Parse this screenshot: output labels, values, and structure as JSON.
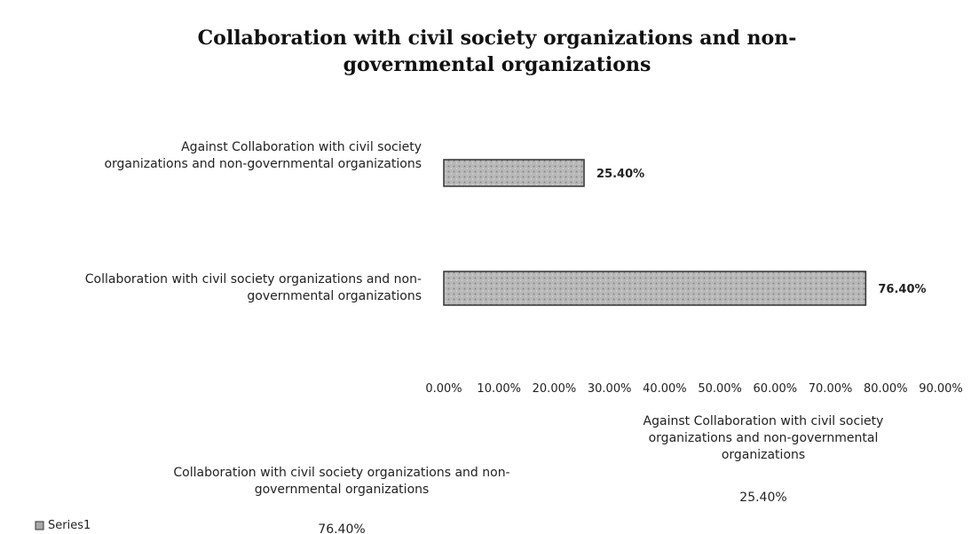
{
  "chart_data": {
    "type": "bar",
    "orientation": "horizontal",
    "title": "Collaboration with civil society organizations and non-governmental organizations",
    "categories": [
      "Against Collaboration with civil society organizations and non-governmental organizations",
      "Collaboration with civil society organizations and non-governmental organizations"
    ],
    "series": [
      {
        "name": "Series1",
        "color": "#a8a8a8",
        "values": [
          25.4,
          76.4
        ],
        "value_labels": [
          "25.40%",
          "76.40%"
        ]
      }
    ],
    "xlim": [
      0,
      90
    ],
    "xticks": [
      {
        "value": 0,
        "label": "0.00%"
      },
      {
        "value": 10,
        "label": "10.00%"
      },
      {
        "value": 20,
        "label": "20.00%"
      },
      {
        "value": 30,
        "label": "30.00%"
      },
      {
        "value": 40,
        "label": "40.00%"
      },
      {
        "value": 50,
        "label": "50.00%"
      },
      {
        "value": 60,
        "label": "60.00%"
      },
      {
        "value": 70,
        "label": "70.00%"
      },
      {
        "value": 80,
        "label": "80.00%"
      },
      {
        "value": 90,
        "label": "90.00%"
      }
    ]
  }
}
